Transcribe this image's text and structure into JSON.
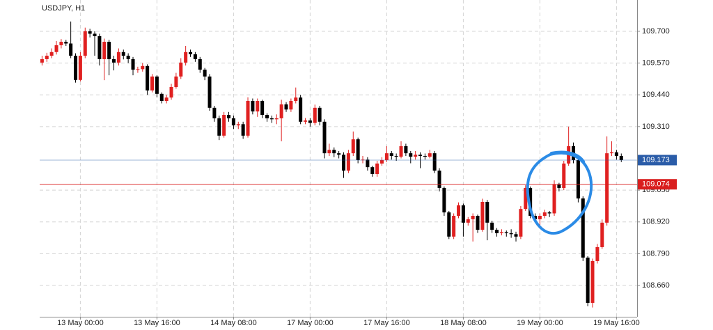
{
  "chart_data": {
    "type": "candlestick",
    "title": "USDJPY, H1",
    "up_color": "#e02020",
    "down_color": "#000000",
    "grid": true,
    "ylim": [
      108.532,
      109.828
    ],
    "yticks": [
      {
        "value": 108.66,
        "label": "108.660"
      },
      {
        "value": 108.79,
        "label": "108.790"
      },
      {
        "value": 108.92,
        "label": "108.920"
      },
      {
        "value": 109.05,
        "label": "109.050"
      },
      {
        "value": 109.31,
        "label": "109.310"
      },
      {
        "value": 109.44,
        "label": "109.440"
      },
      {
        "value": 109.57,
        "label": "109.570"
      },
      {
        "value": 109.7,
        "label": "109.700"
      }
    ],
    "price_lines": [
      {
        "value": 109.173,
        "label": "109.173",
        "color": "#2a5ca8"
      },
      {
        "value": 109.074,
        "label": "109.074",
        "color": "#d91e1e"
      }
    ],
    "categories": [
      null,
      null,
      null,
      null,
      null,
      null,
      null,
      null,
      "13 May 00:00",
      null,
      null,
      null,
      null,
      null,
      null,
      null,
      null,
      null,
      null,
      null,
      null,
      null,
      null,
      null,
      "13 May 16:00",
      null,
      null,
      null,
      null,
      null,
      null,
      null,
      null,
      null,
      null,
      null,
      null,
      null,
      null,
      null,
      "14 May 08:00",
      null,
      null,
      null,
      null,
      null,
      null,
      null,
      null,
      null,
      null,
      null,
      null,
      null,
      null,
      null,
      "17 May 00:00",
      null,
      null,
      null,
      null,
      null,
      null,
      null,
      null,
      null,
      null,
      null,
      null,
      null,
      null,
      null,
      "17 May 16:00",
      null,
      null,
      null,
      null,
      null,
      null,
      null,
      null,
      null,
      null,
      null,
      null,
      null,
      null,
      null,
      "18 May 08:00",
      null,
      null,
      null,
      null,
      null,
      null,
      null,
      null,
      null,
      null,
      null,
      null,
      null,
      null,
      null,
      "19 May 00:00",
      null,
      null,
      null,
      null,
      null,
      null,
      null,
      null,
      null,
      null,
      null,
      null,
      null,
      null,
      null,
      "19 May 16:00",
      null
    ],
    "open": [
      109.572,
      109.586,
      109.6,
      109.615,
      109.643,
      109.657,
      109.65,
      109.6,
      109.501,
      109.6,
      109.7,
      109.69,
      109.68,
      109.586,
      109.657,
      109.586,
      109.572,
      109.615,
      109.6,
      109.586,
      109.543,
      109.545,
      109.558,
      109.458,
      109.515,
      109.444,
      109.415,
      109.429,
      109.472,
      109.515,
      109.572,
      109.615,
      109.606,
      109.586,
      109.543,
      109.515,
      109.387,
      109.344,
      109.273,
      109.358,
      109.344,
      109.315,
      109.32,
      109.273,
      109.415,
      109.372,
      109.415,
      109.358,
      109.344,
      109.34,
      109.344,
      109.401,
      109.38,
      109.415,
      109.429,
      109.33,
      109.335,
      109.325,
      109.387,
      109.33,
      109.201,
      109.215,
      109.201,
      109.195,
      109.13,
      109.201,
      109.258,
      109.173,
      109.175,
      109.144,
      109.116,
      109.159,
      109.173,
      109.201,
      109.19,
      109.187,
      109.23,
      109.201,
      109.187,
      109.195,
      109.19,
      109.187,
      109.201,
      109.13,
      109.059,
      108.959,
      108.86,
      108.945,
      108.988,
      108.917,
      108.931,
      108.945,
      108.888,
      109.002,
      108.917,
      108.888,
      108.874,
      108.878,
      108.874,
      108.87,
      108.86,
      108.973,
      109.059,
      108.945,
      108.931,
      108.945,
      108.959,
      108.955,
      109.073,
      109.059,
      109.159,
      109.23,
      109.173,
      109.016,
      108.774,
      108.589,
      108.76,
      108.817,
      108.917,
      109.201,
      109.205,
      109.19
    ],
    "high": [
      109.6,
      109.612,
      109.63,
      109.66,
      109.668,
      109.665,
      109.74,
      109.61,
      109.615,
      109.715,
      109.71,
      109.7,
      109.69,
      109.67,
      109.665,
      109.6,
      109.63,
      109.625,
      109.61,
      109.595,
      109.555,
      109.57,
      109.565,
      109.525,
      109.52,
      109.45,
      109.44,
      109.485,
      109.53,
      109.59,
      109.64,
      109.625,
      109.615,
      109.595,
      109.55,
      109.525,
      109.395,
      109.355,
      109.37,
      109.37,
      109.355,
      109.33,
      109.33,
      109.43,
      109.425,
      109.425,
      109.42,
      109.365,
      109.355,
      109.36,
      109.42,
      109.41,
      109.425,
      109.47,
      109.44,
      109.345,
      109.345,
      109.4,
      109.395,
      109.34,
      109.24,
      109.225,
      109.21,
      109.205,
      109.215,
      109.29,
      109.265,
      109.19,
      109.185,
      109.15,
      109.17,
      109.185,
      109.23,
      109.21,
      109.2,
      109.25,
      109.24,
      109.21,
      109.21,
      109.205,
      109.2,
      109.215,
      109.21,
      109.14,
      109.065,
      108.965,
      108.955,
      109.0,
      108.995,
      108.94,
      108.955,
      108.95,
      109.015,
      109.01,
      108.925,
      108.895,
      108.89,
      108.885,
      108.89,
      108.88,
      108.985,
      109.07,
      109.065,
      108.955,
      108.955,
      108.97,
      108.965,
      109.09,
      109.08,
      109.17,
      109.31,
      109.245,
      109.185,
      109.025,
      108.78,
      108.77,
      108.83,
      108.93,
      109.27,
      109.25,
      109.215,
      109.2
    ],
    "low": [
      109.56,
      109.575,
      109.59,
      109.605,
      109.63,
      109.64,
      109.59,
      109.49,
      109.495,
      109.59,
      109.675,
      109.6,
      109.56,
      109.5,
      109.52,
      109.54,
      109.56,
      109.585,
      109.57,
      109.52,
      109.53,
      109.535,
      109.44,
      109.45,
      109.43,
      109.405,
      109.405,
      109.42,
      109.465,
      109.505,
      109.56,
      109.595,
      109.575,
      109.53,
      109.5,
      109.375,
      109.33,
      109.255,
      109.265,
      109.33,
      109.3,
      109.3,
      109.26,
      109.265,
      109.36,
      109.35,
      109.345,
      109.33,
      109.325,
      109.32,
      109.25,
      109.37,
      109.37,
      109.405,
      109.32,
      109.32,
      109.31,
      109.315,
      109.315,
      109.18,
      109.19,
      109.185,
      109.18,
      109.1,
      109.12,
      109.19,
      109.16,
      109.16,
      109.13,
      109.105,
      109.105,
      109.15,
      109.165,
      109.175,
      109.17,
      109.18,
      109.19,
      109.16,
      109.175,
      109.14,
      109.175,
      109.18,
      109.12,
      109.045,
      108.945,
      108.85,
      108.85,
      108.935,
      108.86,
      108.905,
      108.84,
      108.875,
      108.88,
      108.845,
      108.875,
      108.86,
      108.865,
      108.86,
      108.855,
      108.84,
      108.85,
      108.965,
      108.935,
      108.92,
      108.905,
      108.935,
      108.94,
      108.945,
      109.045,
      109.05,
      109.15,
      109.16,
      109.0,
      108.76,
      108.575,
      108.57,
      108.75,
      108.81,
      108.905,
      109.19,
      109.175,
      109.165
    ],
    "close": [
      109.586,
      109.6,
      109.615,
      109.643,
      109.657,
      109.65,
      109.6,
      109.501,
      109.6,
      109.7,
      109.69,
      109.68,
      109.586,
      109.657,
      109.586,
      109.572,
      109.615,
      109.6,
      109.586,
      109.543,
      109.545,
      109.558,
      109.458,
      109.515,
      109.444,
      109.415,
      109.429,
      109.472,
      109.515,
      109.572,
      109.615,
      109.606,
      109.586,
      109.543,
      109.515,
      109.387,
      109.344,
      109.273,
      109.358,
      109.344,
      109.315,
      109.32,
      109.273,
      109.415,
      109.372,
      109.415,
      109.358,
      109.344,
      109.34,
      109.344,
      109.401,
      109.38,
      109.415,
      109.429,
      109.33,
      109.335,
      109.325,
      109.387,
      109.33,
      109.201,
      109.215,
      109.201,
      109.195,
      109.13,
      109.201,
      109.258,
      109.173,
      109.175,
      109.144,
      109.116,
      109.159,
      109.173,
      109.201,
      109.19,
      109.187,
      109.23,
      109.201,
      109.187,
      109.195,
      109.19,
      109.187,
      109.201,
      109.13,
      109.059,
      108.959,
      108.86,
      108.945,
      108.988,
      108.917,
      108.931,
      108.945,
      108.888,
      109.002,
      108.917,
      108.888,
      108.874,
      108.878,
      108.874,
      108.87,
      108.86,
      108.973,
      109.059,
      108.945,
      108.931,
      108.945,
      108.959,
      108.955,
      109.073,
      109.059,
      109.159,
      109.23,
      109.173,
      109.016,
      108.774,
      108.589,
      108.76,
      108.817,
      108.917,
      109.201,
      109.205,
      109.19,
      109.173
    ]
  }
}
